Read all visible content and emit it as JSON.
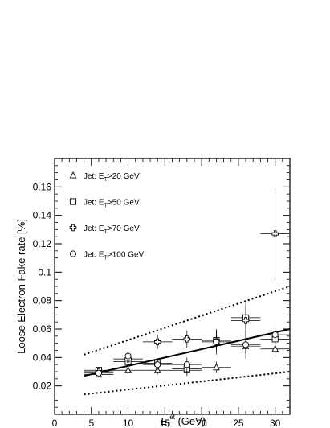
{
  "chart_data": {
    "type": "scatter",
    "ylabel": "Loose Electron Fake rate [%]",
    "xlabel": {
      "base": "E",
      "sup": "jet",
      "sub": "T",
      "unit": " (GeV)"
    },
    "xlim": [
      0,
      32
    ],
    "ylim": [
      0,
      0.18
    ],
    "xticks": [
      "0",
      "5",
      "10",
      "15",
      "20",
      "25",
      "30"
    ],
    "yticks": [
      "0.02",
      "0.04",
      "0.06",
      "0.08",
      "0.1",
      "0.12",
      "0.14",
      "0.16"
    ],
    "legend_position": "top-left",
    "series": [
      {
        "name": "Jet: E_T>20 GeV",
        "legend": {
          "prefix": "Jet: E",
          "sub": "T",
          "suffix": ">20 GeV"
        },
        "marker": "triangle",
        "points": [
          {
            "x": 6,
            "y": 0.028,
            "xerr": 2,
            "yerr": 0.002
          },
          {
            "x": 10,
            "y": 0.031,
            "xerr": 2,
            "yerr": 0.003
          },
          {
            "x": 14,
            "y": 0.031,
            "xerr": 2,
            "yerr": 0.003
          },
          {
            "x": 18,
            "y": 0.031,
            "xerr": 2,
            "yerr": 0.004
          },
          {
            "x": 22,
            "y": 0.033,
            "xerr": 2,
            "yerr": 0.004
          },
          {
            "x": 26,
            "y": 0.048,
            "xerr": 2,
            "yerr": 0.005
          },
          {
            "x": 30,
            "y": 0.046,
            "xerr": 2,
            "yerr": 0.006
          }
        ]
      },
      {
        "name": "Jet: E_T>50 GeV",
        "legend": {
          "prefix": "Jet: E",
          "sub": "T",
          "suffix": ">50 GeV"
        },
        "marker": "square",
        "points": [
          {
            "x": 6,
            "y": 0.031,
            "xerr": 2,
            "yerr": 0.002
          },
          {
            "x": 10,
            "y": 0.037,
            "xerr": 2,
            "yerr": 0.003
          },
          {
            "x": 14,
            "y": 0.036,
            "xerr": 2,
            "yerr": 0.003
          },
          {
            "x": 18,
            "y": 0.032,
            "xerr": 2,
            "yerr": 0.004
          },
          {
            "x": 22,
            "y": 0.052,
            "xerr": 2,
            "yerr": 0.006
          },
          {
            "x": 26,
            "y": 0.068,
            "xerr": 2,
            "yerr": 0.008
          },
          {
            "x": 30,
            "y": 0.053,
            "xerr": 2,
            "yerr": 0.007
          }
        ]
      },
      {
        "name": "Jet: E_T>70 GeV",
        "legend": {
          "prefix": "Jet: E",
          "sub": "T",
          "suffix": ">70 GeV"
        },
        "marker": "cross",
        "points": [
          {
            "x": 6,
            "y": 0.03,
            "xerr": 2,
            "yerr": 0.002
          },
          {
            "x": 10,
            "y": 0.039,
            "xerr": 2,
            "yerr": 0.003
          },
          {
            "x": 14,
            "y": 0.051,
            "xerr": 2,
            "yerr": 0.005
          },
          {
            "x": 18,
            "y": 0.053,
            "xerr": 2,
            "yerr": 0.006
          },
          {
            "x": 22,
            "y": 0.052,
            "xerr": 2,
            "yerr": 0.007
          },
          {
            "x": 26,
            "y": 0.066,
            "xerr": 2,
            "yerr": 0.014
          },
          {
            "x": 30,
            "y": 0.127,
            "xerr": 2,
            "yerr": 0.033
          }
        ]
      },
      {
        "name": "Jet: E_T>100 GeV",
        "legend": {
          "prefix": "Jet: E",
          "sub": "T",
          "suffix": ">100 GeV"
        },
        "marker": "circle",
        "points": [
          {
            "x": 6,
            "y": 0.029,
            "xerr": 2,
            "yerr": 0.002
          },
          {
            "x": 10,
            "y": 0.041,
            "xerr": 2,
            "yerr": 0.003
          },
          {
            "x": 14,
            "y": 0.035,
            "xerr": 2,
            "yerr": 0.004
          },
          {
            "x": 18,
            "y": 0.035,
            "xerr": 2,
            "yerr": 0.005
          },
          {
            "x": 22,
            "y": 0.051,
            "xerr": 2,
            "yerr": 0.009
          },
          {
            "x": 26,
            "y": 0.049,
            "xerr": 2,
            "yerr": 0.01
          },
          {
            "x": 30,
            "y": 0.056,
            "xerr": 2,
            "yerr": 0.009
          }
        ]
      }
    ],
    "fit_lines": [
      {
        "style": "solid",
        "x": [
          4,
          32
        ],
        "y": [
          0.027,
          0.06
        ]
      },
      {
        "style": "dotted",
        "x": [
          4,
          32
        ],
        "y": [
          0.042,
          0.09
        ]
      },
      {
        "style": "dotted",
        "x": [
          4,
          32
        ],
        "y": [
          0.014,
          0.03
        ]
      }
    ]
  }
}
